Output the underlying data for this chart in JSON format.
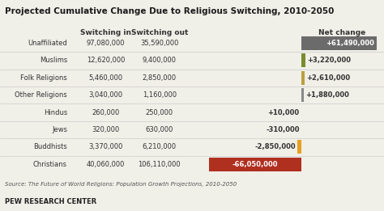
{
  "title": "Projected Cumulative Change Due to Religious Switching, 2010-2050",
  "source": "Source: The Future of World Religions: Population Growth Projections, 2010-2050",
  "footer": "PEW RESEARCH CENTER",
  "col_switching_in": "Switching in",
  "col_switching_out": "Switching out",
  "col_net": "Net change",
  "religions": [
    "Unaffiliated",
    "Muslims",
    "Folk Religions",
    "Other Religions",
    "Hindus",
    "Jews",
    "Buddhists",
    "Christians"
  ],
  "switching_in": [
    97080000,
    12620000,
    5460000,
    3040000,
    260000,
    320000,
    3370000,
    40060000
  ],
  "switching_out": [
    35590000,
    9400000,
    2850000,
    1160000,
    250000,
    630000,
    6210000,
    106110000
  ],
  "net_change": [
    61490000,
    3220000,
    2610000,
    1880000,
    10000,
    -310000,
    -2850000,
    -66050000
  ],
  "net_labels": [
    "+61,490,000",
    "+3,220,000",
    "+2,610,000",
    "+1,880,000",
    "+10,000",
    "-310,000",
    "-2,850,000",
    "-66,050,000"
  ],
  "bar_colors": [
    "#6b6b6b",
    "#7a8c2e",
    "#b8a040",
    "#888888",
    null,
    null,
    "#e8a020",
    "#b03020"
  ],
  "text_on_bar": [
    true,
    false,
    false,
    false,
    false,
    false,
    false,
    true
  ],
  "text_colors_on_bar": [
    "#ffffff",
    "#333333",
    "#333333",
    "#333333",
    "#333333",
    "#333333",
    "#333333",
    "#ffffff"
  ],
  "background": "#f0efe8",
  "title_fontsize": 7.5,
  "label_fontsize": 6.0,
  "header_fontsize": 6.5
}
